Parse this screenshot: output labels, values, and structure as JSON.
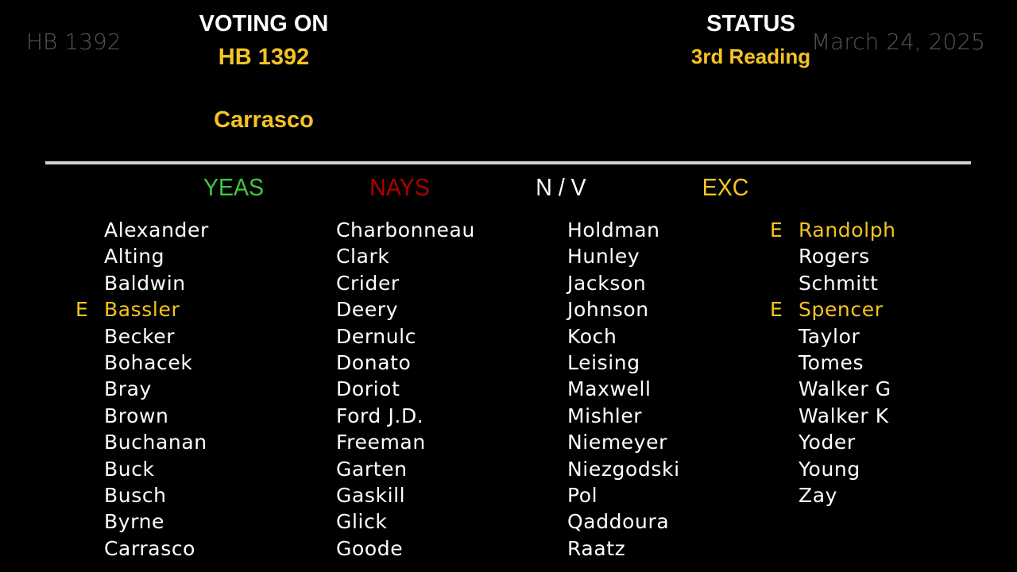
{
  "header": {
    "bill_left": "HB 1392",
    "voting_on_label": "VOTING ON",
    "bill": "HB 1392",
    "author": "Carrasco",
    "status_label": "STATUS",
    "status": "3rd Reading",
    "date": "March 24, 2025"
  },
  "colors": {
    "yeas": "#3fc83f",
    "nays": "#b00000",
    "nv": "#ffffff",
    "exc": "#f5c324"
  },
  "columns": {
    "yeas": "YEAS",
    "nays": "NAYS",
    "nv": "N / V",
    "exc": "EXC"
  },
  "name_columns": [
    [
      {
        "p": "",
        "n": "Alexander"
      },
      {
        "p": "",
        "n": "Alting"
      },
      {
        "p": "",
        "n": "Baldwin"
      },
      {
        "p": "E",
        "n": "Bassler"
      },
      {
        "p": "",
        "n": "Becker"
      },
      {
        "p": "",
        "n": "Bohacek"
      },
      {
        "p": "",
        "n": "Bray"
      },
      {
        "p": "",
        "n": "Brown"
      },
      {
        "p": "",
        "n": "Buchanan"
      },
      {
        "p": "",
        "n": "Buck"
      },
      {
        "p": "",
        "n": "Busch"
      },
      {
        "p": "",
        "n": "Byrne"
      },
      {
        "p": "",
        "n": "Carrasco"
      }
    ],
    [
      {
        "p": "",
        "n": "Charbonneau"
      },
      {
        "p": "",
        "n": "Clark"
      },
      {
        "p": "",
        "n": "Crider"
      },
      {
        "p": "",
        "n": "Deery"
      },
      {
        "p": "",
        "n": "Dernulc"
      },
      {
        "p": "",
        "n": "Donato"
      },
      {
        "p": "",
        "n": "Doriot"
      },
      {
        "p": "",
        "n": "Ford J.D."
      },
      {
        "p": "",
        "n": "Freeman"
      },
      {
        "p": "",
        "n": "Garten"
      },
      {
        "p": "",
        "n": "Gaskill"
      },
      {
        "p": "",
        "n": "Glick"
      },
      {
        "p": "",
        "n": "Goode"
      }
    ],
    [
      {
        "p": "",
        "n": "Holdman"
      },
      {
        "p": "",
        "n": "Hunley"
      },
      {
        "p": "",
        "n": "Jackson"
      },
      {
        "p": "",
        "n": "Johnson"
      },
      {
        "p": "",
        "n": "Koch"
      },
      {
        "p": "",
        "n": "Leising"
      },
      {
        "p": "",
        "n": "Maxwell"
      },
      {
        "p": "",
        "n": "Mishler"
      },
      {
        "p": "",
        "n": "Niemeyer"
      },
      {
        "p": "",
        "n": "Niezgodski"
      },
      {
        "p": "",
        "n": "Pol"
      },
      {
        "p": "",
        "n": "Qaddoura"
      },
      {
        "p": "",
        "n": "Raatz"
      }
    ],
    [
      {
        "p": "E",
        "n": "Randolph"
      },
      {
        "p": "",
        "n": "Rogers"
      },
      {
        "p": "",
        "n": "Schmitt"
      },
      {
        "p": "E",
        "n": "Spencer"
      },
      {
        "p": "",
        "n": "Taylor"
      },
      {
        "p": "",
        "n": "Tomes"
      },
      {
        "p": "",
        "n": "Walker G"
      },
      {
        "p": "",
        "n": "Walker K"
      },
      {
        "p": "",
        "n": "Yoder"
      },
      {
        "p": "",
        "n": "Young"
      },
      {
        "p": "",
        "n": "Zay"
      }
    ]
  ]
}
